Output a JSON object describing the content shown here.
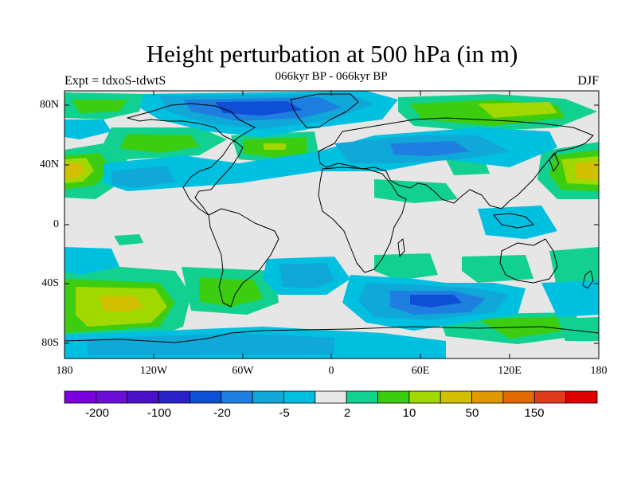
{
  "title": "Height perturbation at 500 hPa (in m)",
  "left_string": "Expt = tdxoS-tdwtS",
  "center_string": "066kyr BP - 066kyr BP",
  "right_string": "DJF",
  "lat_labels": [
    "80N",
    "40N",
    "0",
    "40S",
    "80S"
  ],
  "lon_labels": [
    "180",
    "120W",
    "60W",
    "0",
    "60E",
    "120E",
    "180"
  ],
  "colorbar": {
    "colors": [
      "#7a00e0",
      "#6a0ed8",
      "#4a10c8",
      "#2a22c8",
      "#0f4fd6",
      "#1e7fe0",
      "#10a8d8",
      "#00c0e0",
      "#e8e8e8",
      "#12d090",
      "#3ccc10",
      "#a0d800",
      "#d2c000",
      "#e09a00",
      "#e06a00",
      "#e03a1a",
      "#e00000"
    ],
    "labels": [
      "-200",
      "-100",
      "-20",
      "-5",
      "2",
      "10",
      "50",
      "150"
    ]
  },
  "map": {
    "background_color": "#e6e6e6",
    "fields": [
      {
        "type": "positive-light",
        "color": "#12d090"
      },
      {
        "type": "positive",
        "color": "#3ccc10"
      },
      {
        "type": "positive-strong",
        "color": "#a0d800"
      },
      {
        "type": "positive-max",
        "color": "#d2c000"
      },
      {
        "type": "negative-light",
        "color": "#00c0e0"
      },
      {
        "type": "negative",
        "color": "#10a8d8"
      },
      {
        "type": "negative-strong",
        "color": "#1e7fe0"
      },
      {
        "type": "negative-max",
        "color": "#0f4fd6"
      }
    ]
  }
}
